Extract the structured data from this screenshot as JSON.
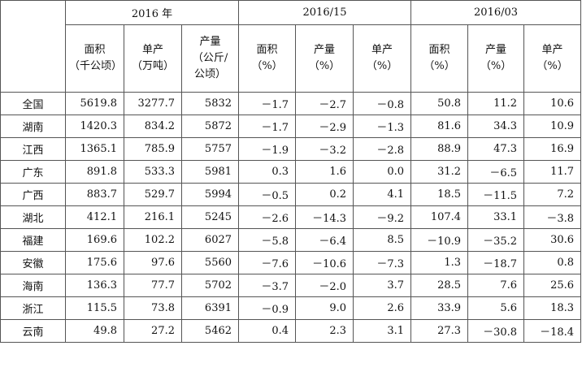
{
  "header": {
    "groups": [
      "2016 年",
      "2016/15",
      "2016/03"
    ],
    "columns": [
      [
        "面积",
        "（千公顷）"
      ],
      [
        "单产",
        "（万吨）"
      ],
      [
        "产量",
        "（公斤/",
        "公顷）"
      ],
      [
        "面积",
        "（%）"
      ],
      [
        "产量",
        "（%）"
      ],
      [
        "单产",
        "（%）"
      ],
      [
        "面积",
        "（%）"
      ],
      [
        "产量",
        "（%）"
      ],
      [
        "单产",
        "（%）"
      ]
    ]
  },
  "rows": [
    {
      "region": "全国",
      "cells": [
        "5619.8",
        "3277.7",
        "5832",
        "－1.7",
        "－2.7",
        "－0.8",
        "50.8",
        "11.2",
        "10.6"
      ]
    },
    {
      "region": "湖南",
      "cells": [
        "1420.3",
        "834.2",
        "5872",
        "－1.7",
        "－2.9",
        "－1.3",
        "81.6",
        "34.3",
        "10.9"
      ]
    },
    {
      "region": "江西",
      "cells": [
        "1365.1",
        "785.9",
        "5757",
        "－1.9",
        "－3.2",
        "－2.8",
        "88.9",
        "47.3",
        "16.9"
      ]
    },
    {
      "region": "广东",
      "cells": [
        "891.8",
        "533.3",
        "5981",
        "0.3",
        "1.6",
        "0.0",
        "31.2",
        "－6.5",
        "11.7"
      ]
    },
    {
      "region": "广西",
      "cells": [
        "883.7",
        "529.7",
        "5994",
        "－0.5",
        "0.2",
        "4.1",
        "18.5",
        "－11.5",
        "7.2"
      ]
    },
    {
      "region": "湖北",
      "cells": [
        "412.1",
        "216.1",
        "5245",
        "－2.6",
        "－14.3",
        "－9.2",
        "107.4",
        "33.1",
        "－3.8"
      ]
    },
    {
      "region": "福建",
      "cells": [
        "169.6",
        "102.2",
        "6027",
        "－5.8",
        "－6.4",
        "8.5",
        "－10.9",
        "－35.2",
        "30.6"
      ]
    },
    {
      "region": "安徽",
      "cells": [
        "175.6",
        "97.6",
        "5560",
        "－7.6",
        "－10.6",
        "－7.3",
        "1.3",
        "－18.7",
        "0.8"
      ]
    },
    {
      "region": "海南",
      "cells": [
        "136.3",
        "77.7",
        "5702",
        "－3.7",
        "－2.0",
        "3.7",
        "28.5",
        "7.6",
        "25.6"
      ]
    },
    {
      "region": "浙江",
      "cells": [
        "115.5",
        "73.8",
        "6391",
        "－0.9",
        "9.0",
        "2.6",
        "33.9",
        "5.6",
        "18.3"
      ]
    },
    {
      "region": "云南",
      "cells": [
        "49.8",
        "27.2",
        "5462",
        "0.4",
        "2.3",
        "3.1",
        "27.3",
        "－30.8",
        "－18.4"
      ]
    }
  ]
}
